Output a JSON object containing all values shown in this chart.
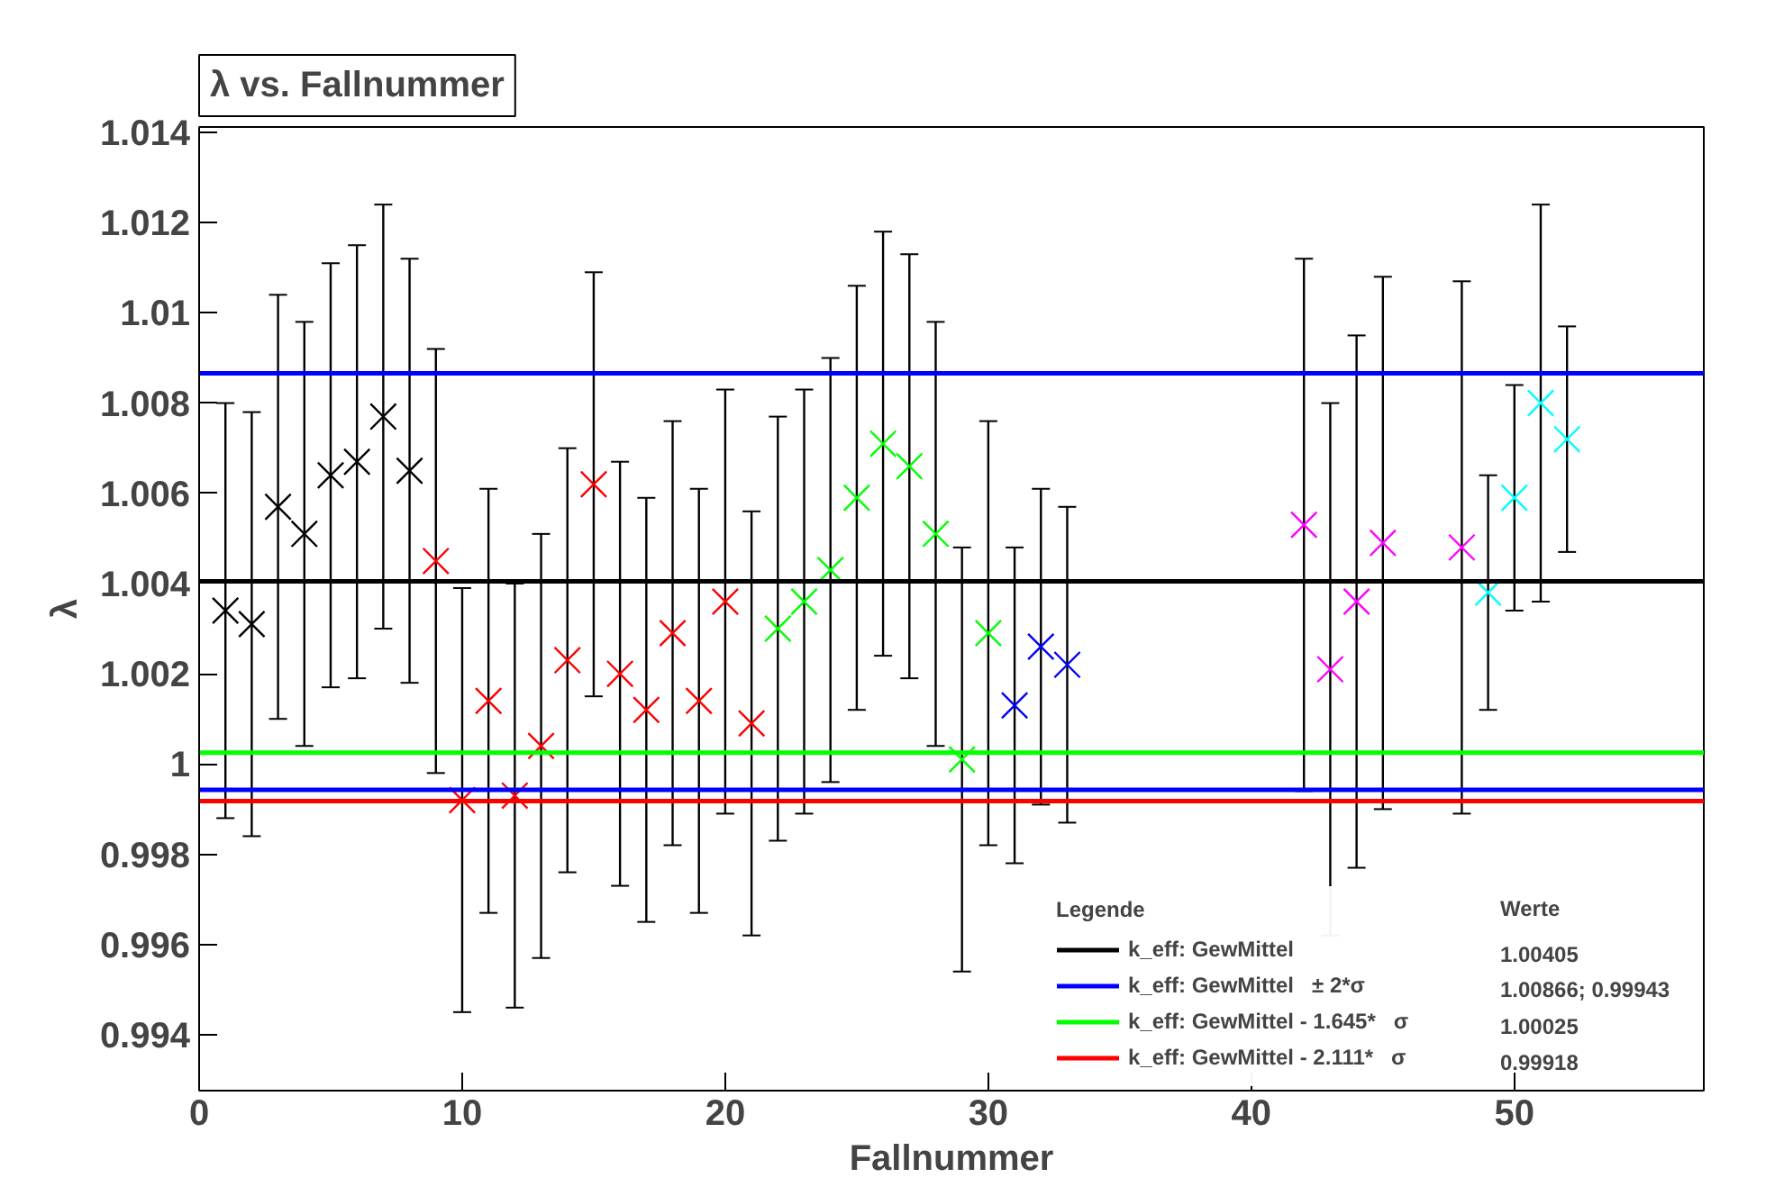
{
  "chart_data": {
    "type": "scatter",
    "title": "λ vs. Fallnummer",
    "xlabel": "Fallnummer",
    "ylabel": "λ",
    "xlim": [
      0,
      57.2
    ],
    "ylim": [
      0.99276,
      1.01412
    ],
    "xticks": [
      0,
      10,
      20,
      30,
      40,
      50
    ],
    "yticks": [
      0.994,
      0.996,
      0.998,
      {
        "value": 1.0,
        "label": "1"
      },
      1.002,
      1.004,
      1.006,
      1.008,
      {
        "value": 1.01,
        "label": "1.01"
      },
      1.012,
      1.014
    ],
    "grid": false,
    "marker": "cross",
    "legend": "bottom right",
    "legend_title": "Legende",
    "series": [
      {
        "color": "#000000",
        "x": [
          1,
          2,
          3,
          4,
          5,
          6,
          7,
          8
        ],
        "values": [
          1.0034,
          1.0031,
          1.0057,
          1.0051,
          1.0064,
          1.0067,
          1.0077,
          1.0065
        ],
        "errors": [
          0.0046,
          0.0047,
          0.0047,
          0.0047,
          0.0047,
          0.0048,
          0.0047,
          0.0047
        ]
      },
      {
        "color": "#ff0000",
        "x": [
          9,
          10,
          11,
          12,
          13,
          14,
          15,
          16,
          17,
          18,
          19,
          20,
          21
        ],
        "values": [
          1.0045,
          0.9992,
          1.0014,
          0.9993,
          1.0004,
          1.0023,
          1.0062,
          1.002,
          1.0012,
          1.0029,
          1.0014,
          1.0036,
          1.0009
        ],
        "errors": [
          0.0047,
          0.0047,
          0.0047,
          0.0047,
          0.0047,
          0.0047,
          0.0047,
          0.0047,
          0.0047,
          0.0047,
          0.0047,
          0.0047,
          0.0047
        ]
      },
      {
        "color": "#00ff00",
        "x": [
          22,
          23,
          24,
          25,
          26,
          27,
          28,
          29,
          30
        ],
        "values": [
          1.003,
          1.0036,
          1.0043,
          1.0059,
          1.0071,
          1.0066,
          1.0051,
          1.0001,
          1.0029
        ],
        "errors": [
          0.0047,
          0.0047,
          0.0047,
          0.0047,
          0.0047,
          0.0047,
          0.0047,
          0.0047,
          0.0047
        ]
      },
      {
        "color": "#0000ff",
        "x": [
          31,
          32,
          33
        ],
        "values": [
          1.0013,
          1.0026,
          1.0022
        ],
        "errors": [
          0.0035,
          0.0035,
          0.0035
        ]
      },
      {
        "color": "#ff00ff",
        "x": [
          42,
          43,
          44,
          45,
          48
        ],
        "values": [
          1.0053,
          1.0021,
          1.0036,
          1.0049,
          1.0048
        ],
        "errors": [
          0.0059,
          0.0059,
          0.0059,
          0.0059,
          0.0059
        ]
      },
      {
        "color": "#00ffff",
        "x": [
          49,
          50,
          51,
          52
        ],
        "values": [
          1.0038,
          1.0059,
          1.008,
          1.0072
        ],
        "errors": [
          0.0026,
          0.0025,
          0.0044,
          0.0025
        ]
      }
    ],
    "ref_lines": [
      {
        "axis": "y",
        "value": 1.00405,
        "label": "k_eff: GewMittel",
        "color": "#000000"
      },
      {
        "axis": "y",
        "value": 1.00866,
        "label": "k_eff: GewMittel   ± 2*σ",
        "color": "#0000ff"
      },
      {
        "axis": "y",
        "value": 0.99943,
        "label": null,
        "color": "#0000ff"
      },
      {
        "axis": "y",
        "value": 1.00025,
        "label": "k_eff: GewMittel - 1.645*   σ",
        "color": "#00ff00"
      },
      {
        "axis": "y",
        "value": 0.99918,
        "label": "k_eff: GewMittel - 2.111*   σ",
        "color": "#ff0000"
      }
    ],
    "annotations": [
      "Werte",
      "1.00405",
      "1.00866; 0.99943",
      "1.00025",
      "0.99918"
    ]
  }
}
